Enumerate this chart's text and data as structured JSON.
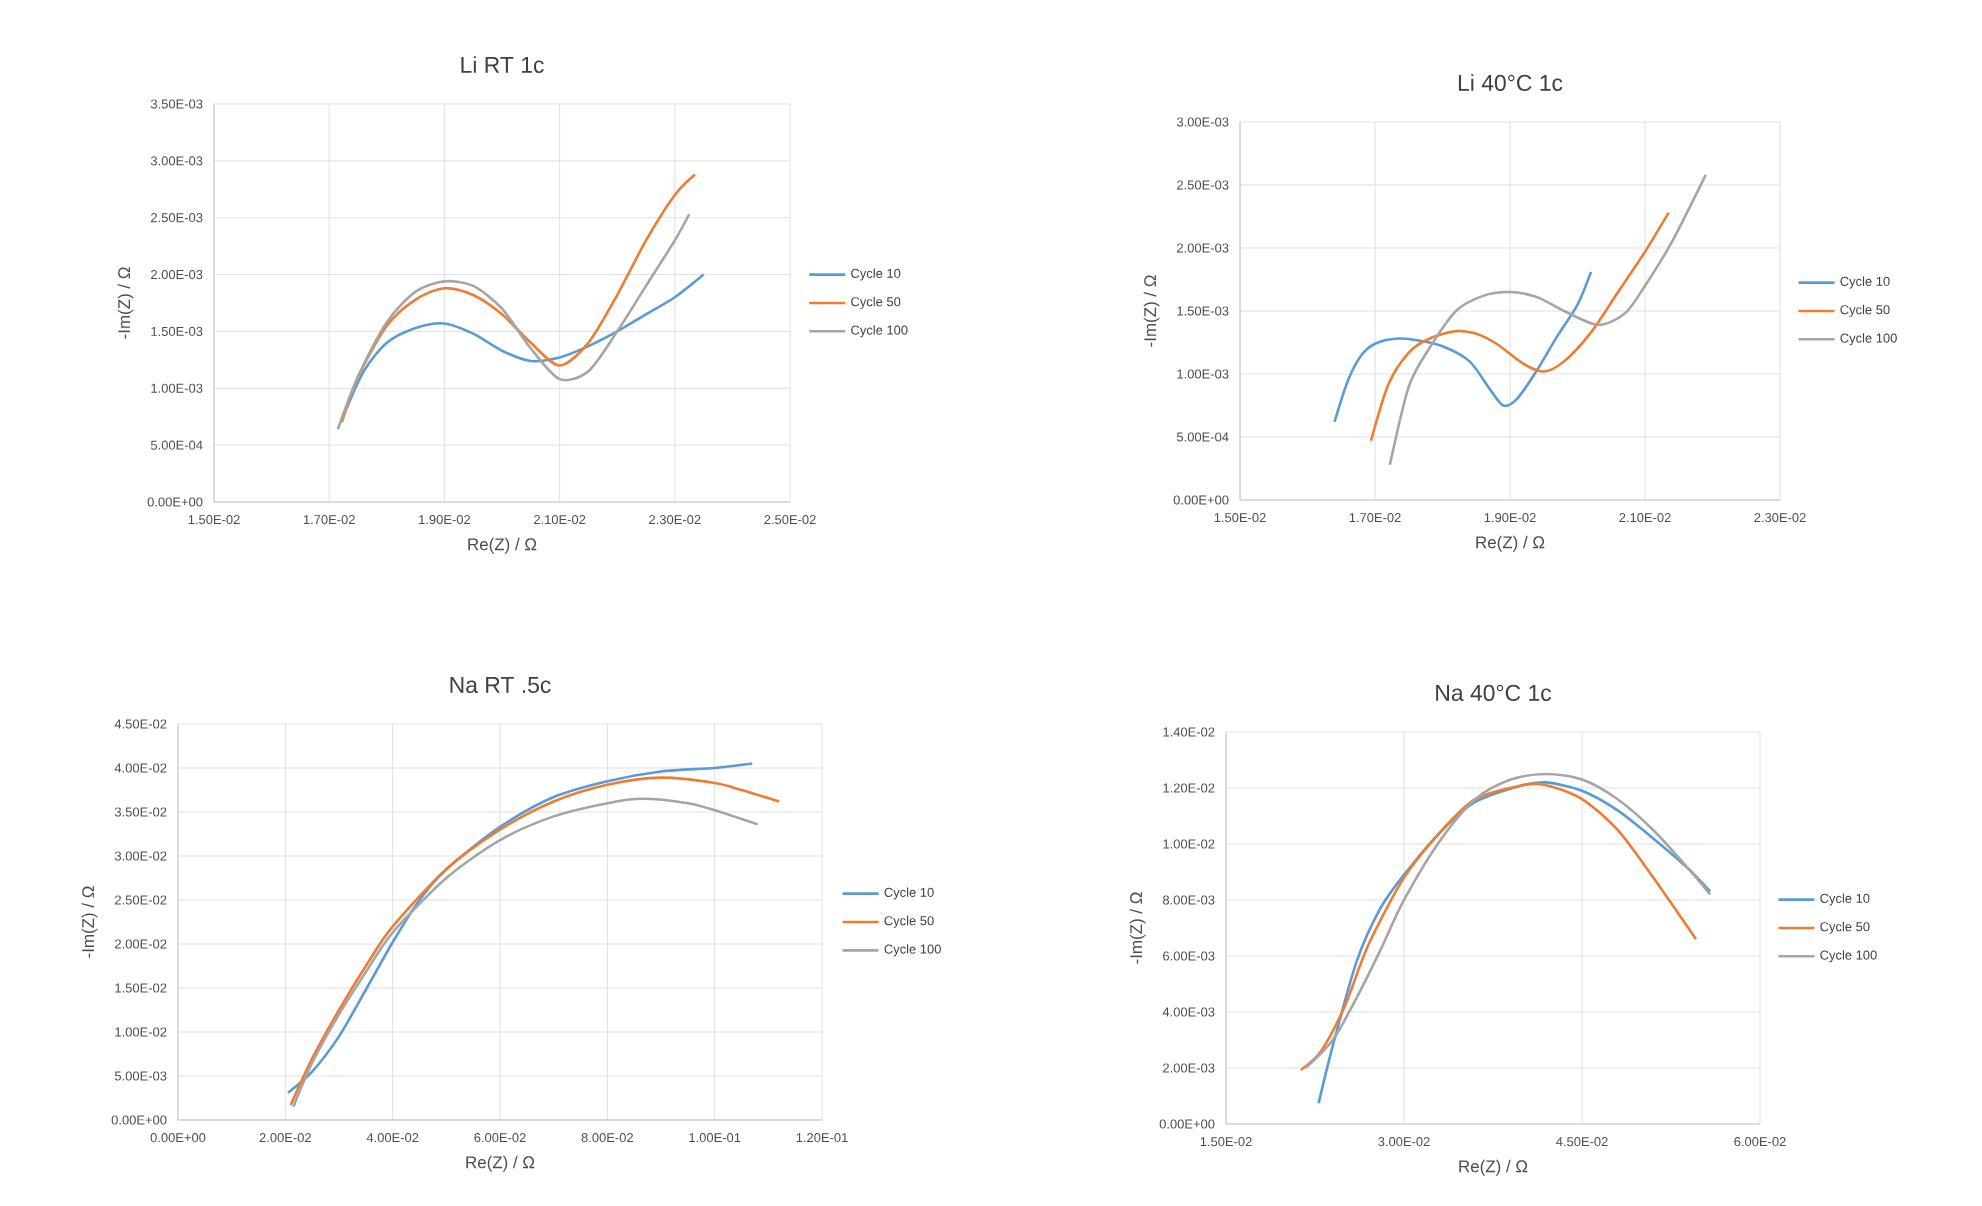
{
  "chart_data": [
    {
      "type": "line",
      "title": "Li RT 1c",
      "xlabel": "Re(Z) / Ω",
      "ylabel": "-Im(Z) / Ω",
      "grid": true,
      "legend": "right",
      "marker": "none",
      "xlim": [
        0.015,
        0.025
      ],
      "ylim": [
        0,
        0.0035
      ],
      "xticks": [
        {
          "value": 0.015,
          "label": "1.50E-02"
        },
        {
          "value": 0.017,
          "label": "1.70E-02"
        },
        {
          "value": 0.019,
          "label": "1.90E-02"
        },
        {
          "value": 0.021,
          "label": "2.10E-02"
        },
        {
          "value": 0.023,
          "label": "2.30E-02"
        },
        {
          "value": 0.025,
          "label": "2.50E-02"
        }
      ],
      "yticks": [
        {
          "value": 0,
          "label": "0.00E+00"
        },
        {
          "value": 0.0005,
          "label": "5.00E-04"
        },
        {
          "value": 0.001,
          "label": "1.00E-03"
        },
        {
          "value": 0.0015,
          "label": "1.50E-03"
        },
        {
          "value": 0.002,
          "label": "2.00E-03"
        },
        {
          "value": 0.0025,
          "label": "2.50E-03"
        },
        {
          "value": 0.003,
          "label": "3.00E-03"
        },
        {
          "value": 0.0035,
          "label": "3.50E-03"
        }
      ],
      "series": [
        {
          "name": "Cycle 10",
          "color": "#5b9bd5",
          "x": [
            0.0173,
            0.0176,
            0.018,
            0.0185,
            0.019,
            0.0195,
            0.02,
            0.0205,
            0.021,
            0.0215,
            0.022,
            0.0225,
            0.023,
            0.0235
          ],
          "values": [
            0.00082,
            0.00115,
            0.0014,
            0.00153,
            0.00157,
            0.00148,
            0.00133,
            0.00124,
            0.00127,
            0.00137,
            0.0015,
            0.00165,
            0.0018,
            0.002
          ]
        },
        {
          "name": "Cycle 50",
          "color": "#ed7d31",
          "x": [
            0.01722,
            0.0175,
            0.018,
            0.0185,
            0.019,
            0.0195,
            0.02,
            0.0205,
            0.021,
            0.0215,
            0.022,
            0.0225,
            0.023,
            0.02335
          ],
          "values": [
            0.0007,
            0.0011,
            0.00155,
            0.00178,
            0.00188,
            0.00182,
            0.00165,
            0.0014,
            0.0012,
            0.0014,
            0.00182,
            0.0023,
            0.0027,
            0.00288
          ]
        },
        {
          "name": "Cycle 100",
          "color": "#a5a5a5",
          "x": [
            0.01715,
            0.0175,
            0.018,
            0.0185,
            0.019,
            0.0195,
            0.02,
            0.0205,
            0.021,
            0.0215,
            0.022,
            0.0225,
            0.023,
            0.02325
          ],
          "values": [
            0.00064,
            0.0011,
            0.00158,
            0.00185,
            0.00194,
            0.0019,
            0.0017,
            0.00135,
            0.00108,
            0.00115,
            0.0015,
            0.0019,
            0.0023,
            0.00253
          ]
        }
      ]
    },
    {
      "type": "line",
      "title": "Li 40°C 1c",
      "xlabel": "Re(Z) / Ω",
      "ylabel": "-Im(Z) / Ω",
      "grid": true,
      "legend": "right",
      "marker": "none",
      "xlim": [
        0.015,
        0.023
      ],
      "ylim": [
        0,
        0.003
      ],
      "xticks": [
        {
          "value": 0.015,
          "label": "1.50E-02"
        },
        {
          "value": 0.017,
          "label": "1.70E-02"
        },
        {
          "value": 0.019,
          "label": "1.90E-02"
        },
        {
          "value": 0.021,
          "label": "2.10E-02"
        },
        {
          "value": 0.023,
          "label": "2.30E-02"
        }
      ],
      "yticks": [
        {
          "value": 0,
          "label": "0.00E+00"
        },
        {
          "value": 0.0005,
          "label": "5.00E-04"
        },
        {
          "value": 0.001,
          "label": "1.00E-03"
        },
        {
          "value": 0.0015,
          "label": "1.50E-03"
        },
        {
          "value": 0.002,
          "label": "2.00E-03"
        },
        {
          "value": 0.0025,
          "label": "2.50E-03"
        },
        {
          "value": 0.003,
          "label": "3.00E-03"
        }
      ],
      "series": [
        {
          "name": "Cycle 10",
          "color": "#5b9bd5",
          "x": [
            0.0164,
            0.0166,
            0.0168,
            0.017,
            0.0173,
            0.0176,
            0.018,
            0.0184,
            0.0187,
            0.0189,
            0.0191,
            0.0194,
            0.0197,
            0.02,
            0.0202
          ],
          "values": [
            0.00062,
            0.00095,
            0.00115,
            0.00124,
            0.00128,
            0.00127,
            0.00122,
            0.0011,
            0.00088,
            0.00075,
            0.0008,
            0.00103,
            0.0013,
            0.00155,
            0.00181
          ]
        },
        {
          "name": "Cycle 50",
          "color": "#ed7d31",
          "x": [
            0.01694,
            0.0172,
            0.0175,
            0.0178,
            0.0182,
            0.0185,
            0.0188,
            0.0192,
            0.0195,
            0.0198,
            0.0202,
            0.0206,
            0.021,
            0.02135
          ],
          "values": [
            0.00047,
            0.00092,
            0.00117,
            0.00128,
            0.00134,
            0.00132,
            0.00124,
            0.00108,
            0.00102,
            0.0011,
            0.00133,
            0.00165,
            0.00197,
            0.00228
          ]
        },
        {
          "name": "Cycle 100",
          "color": "#a5a5a5",
          "x": [
            0.01722,
            0.0175,
            0.0178,
            0.0182,
            0.0186,
            0.019,
            0.0194,
            0.0198,
            0.0203,
            0.0207,
            0.021,
            0.0214,
            0.0219
          ],
          "values": [
            0.00028,
            0.0009,
            0.0012,
            0.0015,
            0.00162,
            0.00165,
            0.00161,
            0.0015,
            0.00139,
            0.00148,
            0.0017,
            0.00205,
            0.00258
          ]
        }
      ]
    },
    {
      "type": "line",
      "title": "Na RT .5c",
      "xlabel": "Re(Z) / Ω",
      "ylabel": "-Im(Z) / Ω",
      "grid": true,
      "legend": "right",
      "marker": "none",
      "xlim": [
        0,
        0.12
      ],
      "ylim": [
        0,
        0.045
      ],
      "xticks": [
        {
          "value": 0,
          "label": "0.00E+00"
        },
        {
          "value": 0.02,
          "label": "2.00E-02"
        },
        {
          "value": 0.04,
          "label": "4.00E-02"
        },
        {
          "value": 0.06,
          "label": "6.00E-02"
        },
        {
          "value": 0.08,
          "label": "8.00E-02"
        },
        {
          "value": 0.1,
          "label": "1.00E-01"
        },
        {
          "value": 0.12,
          "label": "1.20E-01"
        }
      ],
      "yticks": [
        {
          "value": 0,
          "label": "0.00E+00"
        },
        {
          "value": 0.005,
          "label": "5.00E-03"
        },
        {
          "value": 0.01,
          "label": "1.00E-02"
        },
        {
          "value": 0.015,
          "label": "1.50E-02"
        },
        {
          "value": 0.02,
          "label": "2.00E-02"
        },
        {
          "value": 0.025,
          "label": "2.50E-02"
        },
        {
          "value": 0.03,
          "label": "3.00E-02"
        },
        {
          "value": 0.035,
          "label": "3.50E-02"
        },
        {
          "value": 0.04,
          "label": "4.00E-02"
        },
        {
          "value": 0.045,
          "label": "4.50E-02"
        }
      ],
      "series": [
        {
          "name": "Cycle 10",
          "color": "#5b9bd5",
          "x": [
            0.0205,
            0.025,
            0.03,
            0.035,
            0.04,
            0.045,
            0.05,
            0.06,
            0.07,
            0.08,
            0.09,
            0.1,
            0.107
          ],
          "values": [
            0.0031,
            0.0055,
            0.0095,
            0.0148,
            0.0202,
            0.025,
            0.0285,
            0.0333,
            0.0367,
            0.0385,
            0.0396,
            0.04,
            0.0405
          ]
        },
        {
          "name": "Cycle 50",
          "color": "#ed7d31",
          "x": [
            0.021,
            0.025,
            0.03,
            0.035,
            0.04,
            0.05,
            0.06,
            0.07,
            0.08,
            0.09,
            0.1,
            0.105,
            0.112
          ],
          "values": [
            0.0017,
            0.007,
            0.0125,
            0.0175,
            0.022,
            0.0285,
            0.033,
            0.0362,
            0.0381,
            0.0389,
            0.0383,
            0.0375,
            0.0362
          ]
        },
        {
          "name": "Cycle 100",
          "color": "#a5a5a5",
          "x": [
            0.0215,
            0.025,
            0.03,
            0.035,
            0.04,
            0.05,
            0.06,
            0.07,
            0.08,
            0.0865,
            0.095,
            0.1,
            0.108
          ],
          "values": [
            0.0015,
            0.0065,
            0.012,
            0.0168,
            0.0213,
            0.0275,
            0.0318,
            0.0345,
            0.036,
            0.0365,
            0.036,
            0.0352,
            0.0336
          ]
        }
      ]
    },
    {
      "type": "line",
      "title": "Na 40°C 1c",
      "xlabel": "Re(Z) / Ω",
      "ylabel": "-Im(Z) / Ω",
      "grid": true,
      "legend": "right",
      "marker": "none",
      "xlim": [
        0.015,
        0.06
      ],
      "ylim": [
        0,
        0.014
      ],
      "xticks": [
        {
          "value": 0.015,
          "label": "1.50E-02"
        },
        {
          "value": 0.03,
          "label": "3.00E-02"
        },
        {
          "value": 0.045,
          "label": "4.50E-02"
        },
        {
          "value": 0.06,
          "label": "6.00E-02"
        }
      ],
      "yticks": [
        {
          "value": 0,
          "label": "0.00E+00"
        },
        {
          "value": 0.002,
          "label": "2.00E-03"
        },
        {
          "value": 0.004,
          "label": "4.00E-03"
        },
        {
          "value": 0.006,
          "label": "6.00E-03"
        },
        {
          "value": 0.008,
          "label": "8.00E-03"
        },
        {
          "value": 0.01,
          "label": "1.00E-02"
        },
        {
          "value": 0.012,
          "label": "1.20E-02"
        },
        {
          "value": 0.014,
          "label": "1.40E-02"
        }
      ],
      "series": [
        {
          "name": "Cycle 10",
          "color": "#5b9bd5",
          "x": [
            0.0228,
            0.024,
            0.026,
            0.028,
            0.03,
            0.033,
            0.036,
            0.04,
            0.042,
            0.045,
            0.048,
            0.051,
            0.054,
            0.0558
          ],
          "values": [
            0.00074,
            0.0028,
            0.0058,
            0.0077,
            0.0089,
            0.0104,
            0.0115,
            0.0121,
            0.0122,
            0.0119,
            0.0112,
            0.0102,
            0.0091,
            0.0083
          ]
        },
        {
          "name": "Cycle 50",
          "color": "#ed7d31",
          "x": [
            0.0213,
            0.023,
            0.025,
            0.027,
            0.03,
            0.033,
            0.036,
            0.04,
            0.042,
            0.045,
            0.048,
            0.051,
            0.0546
          ],
          "values": [
            0.00193,
            0.0026,
            0.0042,
            0.0064,
            0.0088,
            0.0104,
            0.0116,
            0.0121,
            0.0121,
            0.0116,
            0.0105,
            0.0088,
            0.0066
          ]
        },
        {
          "name": "Cycle 100",
          "color": "#a5a5a5",
          "x": [
            0.0217,
            0.024,
            0.026,
            0.028,
            0.03,
            0.033,
            0.036,
            0.039,
            0.042,
            0.045,
            0.048,
            0.051,
            0.054,
            0.0558
          ],
          "values": [
            0.002,
            0.003,
            0.0045,
            0.0062,
            0.008,
            0.0101,
            0.0116,
            0.0123,
            0.0125,
            0.0123,
            0.0116,
            0.0105,
            0.0091,
            0.0082
          ]
        }
      ]
    }
  ]
}
